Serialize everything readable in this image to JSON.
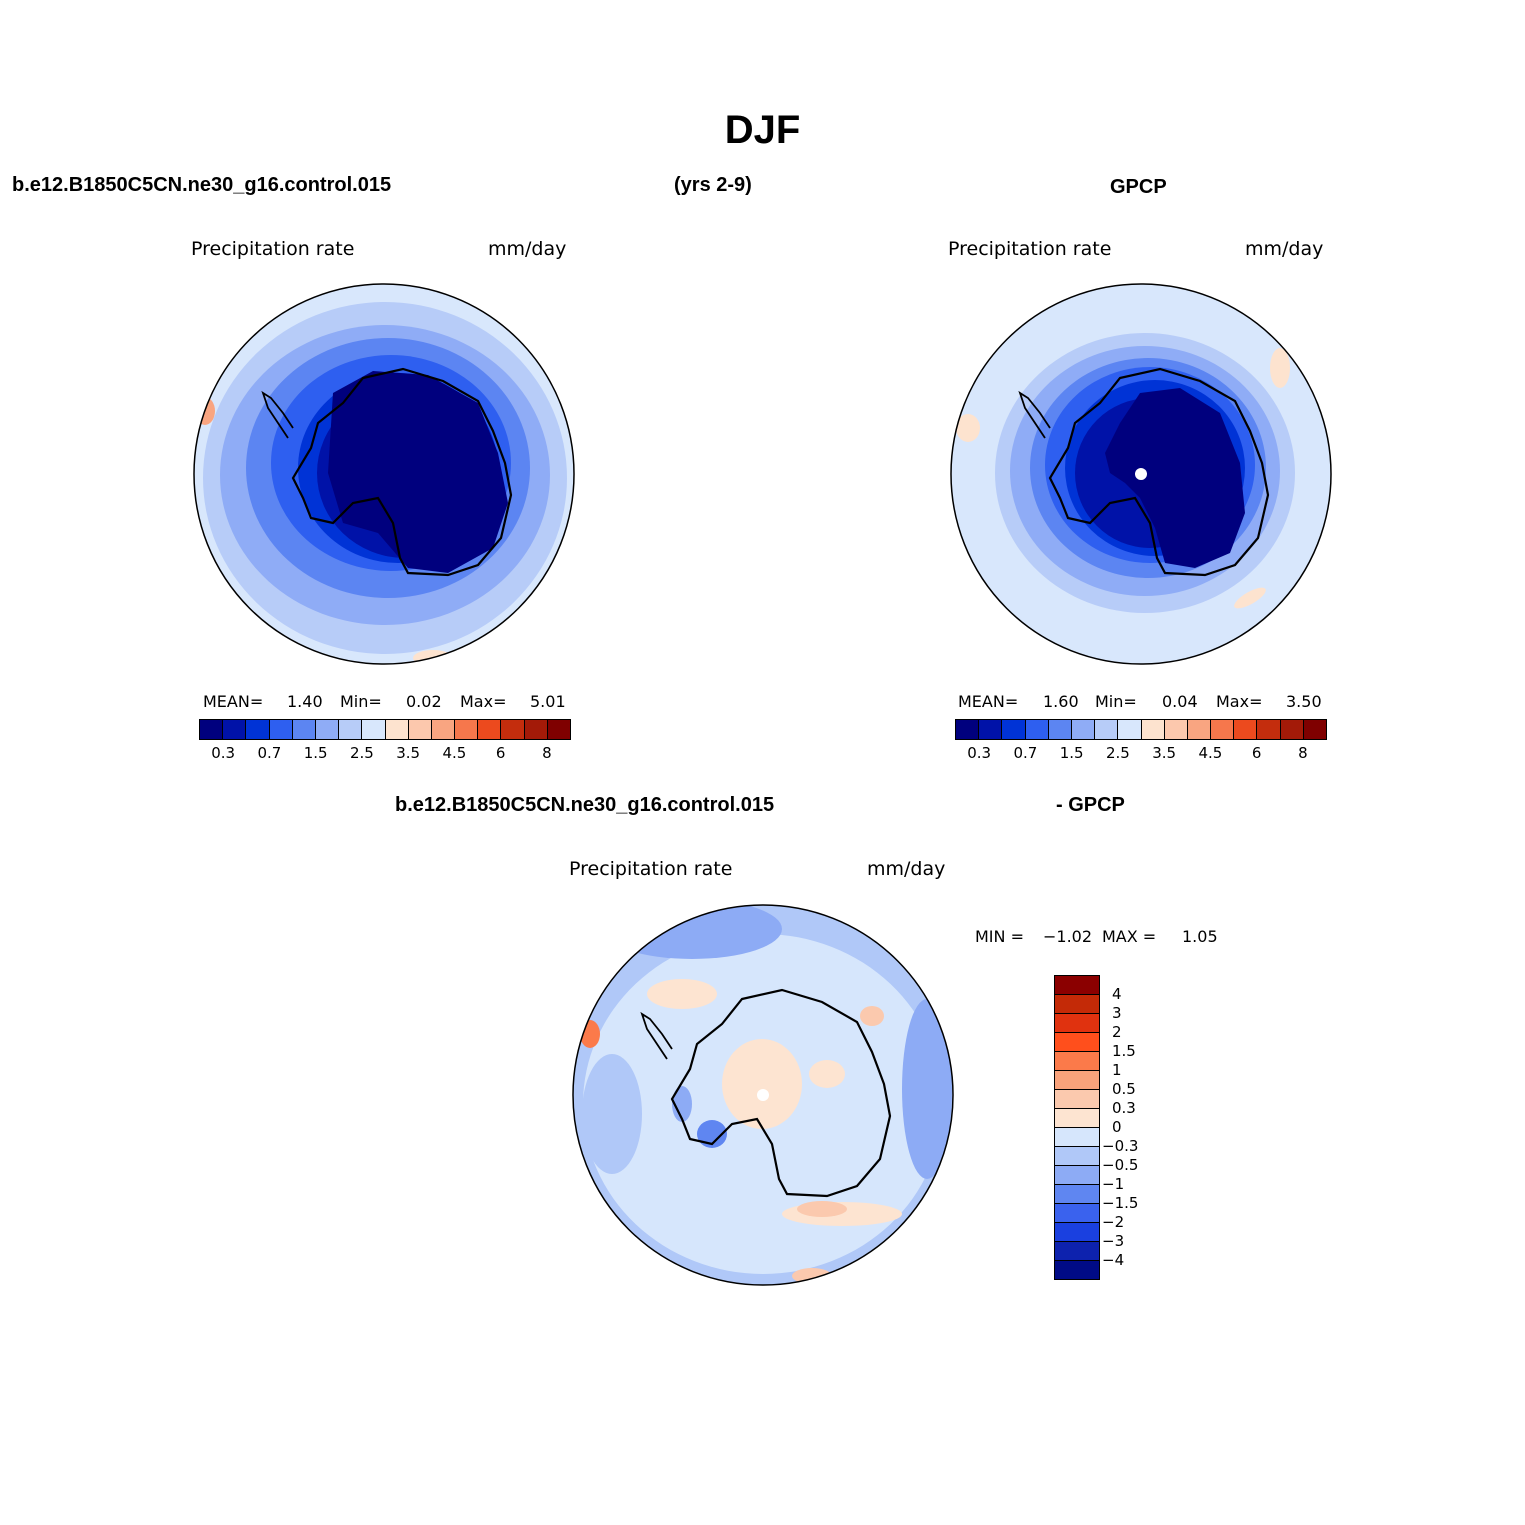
{
  "title": "DJF",
  "top_left_case": "b.e12.B1850C5CN.ne30_g16.control.015",
  "top_years": "(yrs 2-9)",
  "top_right_obs": "GPCP",
  "panel_left": {
    "variable": "Precipitation rate",
    "units": "mm/day",
    "stats": {
      "mean_label": "MEAN=",
      "mean": "1.40",
      "min_label": "Min=",
      "min": "0.02",
      "max_label": "Max=",
      "max": "5.01"
    }
  },
  "panel_right": {
    "variable": "Precipitation rate",
    "units": "mm/day",
    "stats": {
      "mean_label": "MEAN=",
      "mean": "1.60",
      "min_label": "Min=",
      "min": "0.04",
      "max_label": "Max=",
      "max": "3.50"
    }
  },
  "horizontal_colorbar": {
    "colors": [
      "#00007e",
      "#0012a8",
      "#0033d6",
      "#2e5ff0",
      "#5c85f2",
      "#8facf6",
      "#b7ccf8",
      "#d8e7fc",
      "#fde3cf",
      "#fcc8ad",
      "#f9a581",
      "#f6774c",
      "#ec4a1e",
      "#c42d0d",
      "#a31a08",
      "#7f0000"
    ],
    "tick_labels": [
      "0.3",
      "0.7",
      "1.5",
      "2.5",
      "3.5",
      "4.5",
      "6",
      "8"
    ]
  },
  "diff_title_case": "b.e12.B1850C5CN.ne30_g16.control.015",
  "diff_title_obs": "- GPCP",
  "panel_diff": {
    "variable": "Precipitation rate",
    "units": "mm/day",
    "minmax": {
      "min_label": "MIN =",
      "min": "−1.02",
      "max_label": "MAX =",
      "max": "1.05"
    }
  },
  "vertical_colorbar": {
    "colors_top_to_bottom": [
      "#8b0000",
      "#c42a07",
      "#e0320f",
      "#ff4f1c",
      "#fb7a4a",
      "#f8a27b",
      "#fbc9ae",
      "#fde4d1",
      "#d6e6fc",
      "#b0c8f8",
      "#8dabf5",
      "#5f86f1",
      "#3a62ee",
      "#1a40e0",
      "#0d22ae",
      "#000b86"
    ],
    "tick_labels_top_to_bottom": [
      "4",
      "3",
      "2",
      "1.5",
      "1",
      "0.5",
      "0.3",
      "0",
      "−0.3",
      "−0.5",
      "−1",
      "−1.5",
      "−2",
      "−3",
      "−4"
    ]
  }
}
